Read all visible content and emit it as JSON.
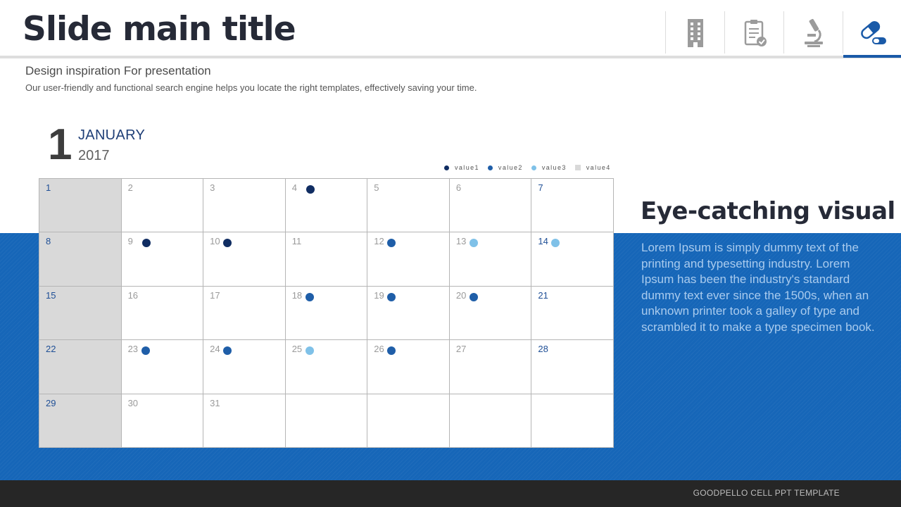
{
  "header": {
    "title": "Slide main title",
    "nav": [
      {
        "icon": "building-icon",
        "active": false
      },
      {
        "icon": "checklist-clipboard-icon",
        "active": false
      },
      {
        "icon": "microscope-icon",
        "active": false
      },
      {
        "icon": "pill-capsule-icon",
        "active": true
      }
    ]
  },
  "intro": {
    "subtitle": "Design inspiration For presentation",
    "description": "Our user-friendly and functional search engine helps you locate the right templates, effectively saving your time."
  },
  "date": {
    "day": "1",
    "month": "JANUARY",
    "year": "2017"
  },
  "legend": [
    {
      "label": "value1",
      "color": "#102d62",
      "shape": "dot"
    },
    {
      "label": "value2",
      "color": "#1f5ea8",
      "shape": "dot"
    },
    {
      "label": "value3",
      "color": "#7fc1e8",
      "shape": "dot"
    },
    {
      "label": "value4",
      "color": "#d9d9d9",
      "shape": "square"
    }
  ],
  "calendar": {
    "weeks": [
      [
        {
          "day": "1"
        },
        {
          "day": "2"
        },
        {
          "day": "3"
        },
        {
          "day": "4",
          "mark": "value1"
        },
        {
          "day": "5"
        },
        {
          "day": "6"
        },
        {
          "day": "7"
        }
      ],
      [
        {
          "day": "8"
        },
        {
          "day": "9",
          "mark": "value1"
        },
        {
          "day": "10",
          "mark": "value1"
        },
        {
          "day": "11"
        },
        {
          "day": "12",
          "mark": "value2"
        },
        {
          "day": "13",
          "mark": "value3"
        },
        {
          "day": "14",
          "mark": "value3"
        }
      ],
      [
        {
          "day": "15"
        },
        {
          "day": "16"
        },
        {
          "day": "17"
        },
        {
          "day": "18",
          "mark": "value2"
        },
        {
          "day": "19",
          "mark": "value2"
        },
        {
          "day": "20",
          "mark": "value2"
        },
        {
          "day": "21"
        }
      ],
      [
        {
          "day": "22"
        },
        {
          "day": "23",
          "mark": "value2"
        },
        {
          "day": "24",
          "mark": "value2"
        },
        {
          "day": "25",
          "mark": "value3"
        },
        {
          "day": "26",
          "mark": "value2"
        },
        {
          "day": "27"
        },
        {
          "day": "28"
        }
      ],
      [
        {
          "day": "29"
        },
        {
          "day": "30"
        },
        {
          "day": "31"
        },
        {
          "day": ""
        },
        {
          "day": ""
        },
        {
          "day": ""
        },
        {
          "day": ""
        }
      ]
    ]
  },
  "side": {
    "title": "Eye-catching visual",
    "body": "Lorem Ipsum is simply dummy text of the printing and typesetting industry. Lorem Ipsum has been the industry's standard dummy text ever since the 1500s, when an unknown printer took a galley of type and scrambled it to make a type specimen book."
  },
  "footer": {
    "text": "GOODPELLO CELL PPT TEMPLATE"
  },
  "colors": {
    "accent_blue": "#1666b8",
    "title_dark": "#262a37",
    "footer_bg": "#262626"
  }
}
